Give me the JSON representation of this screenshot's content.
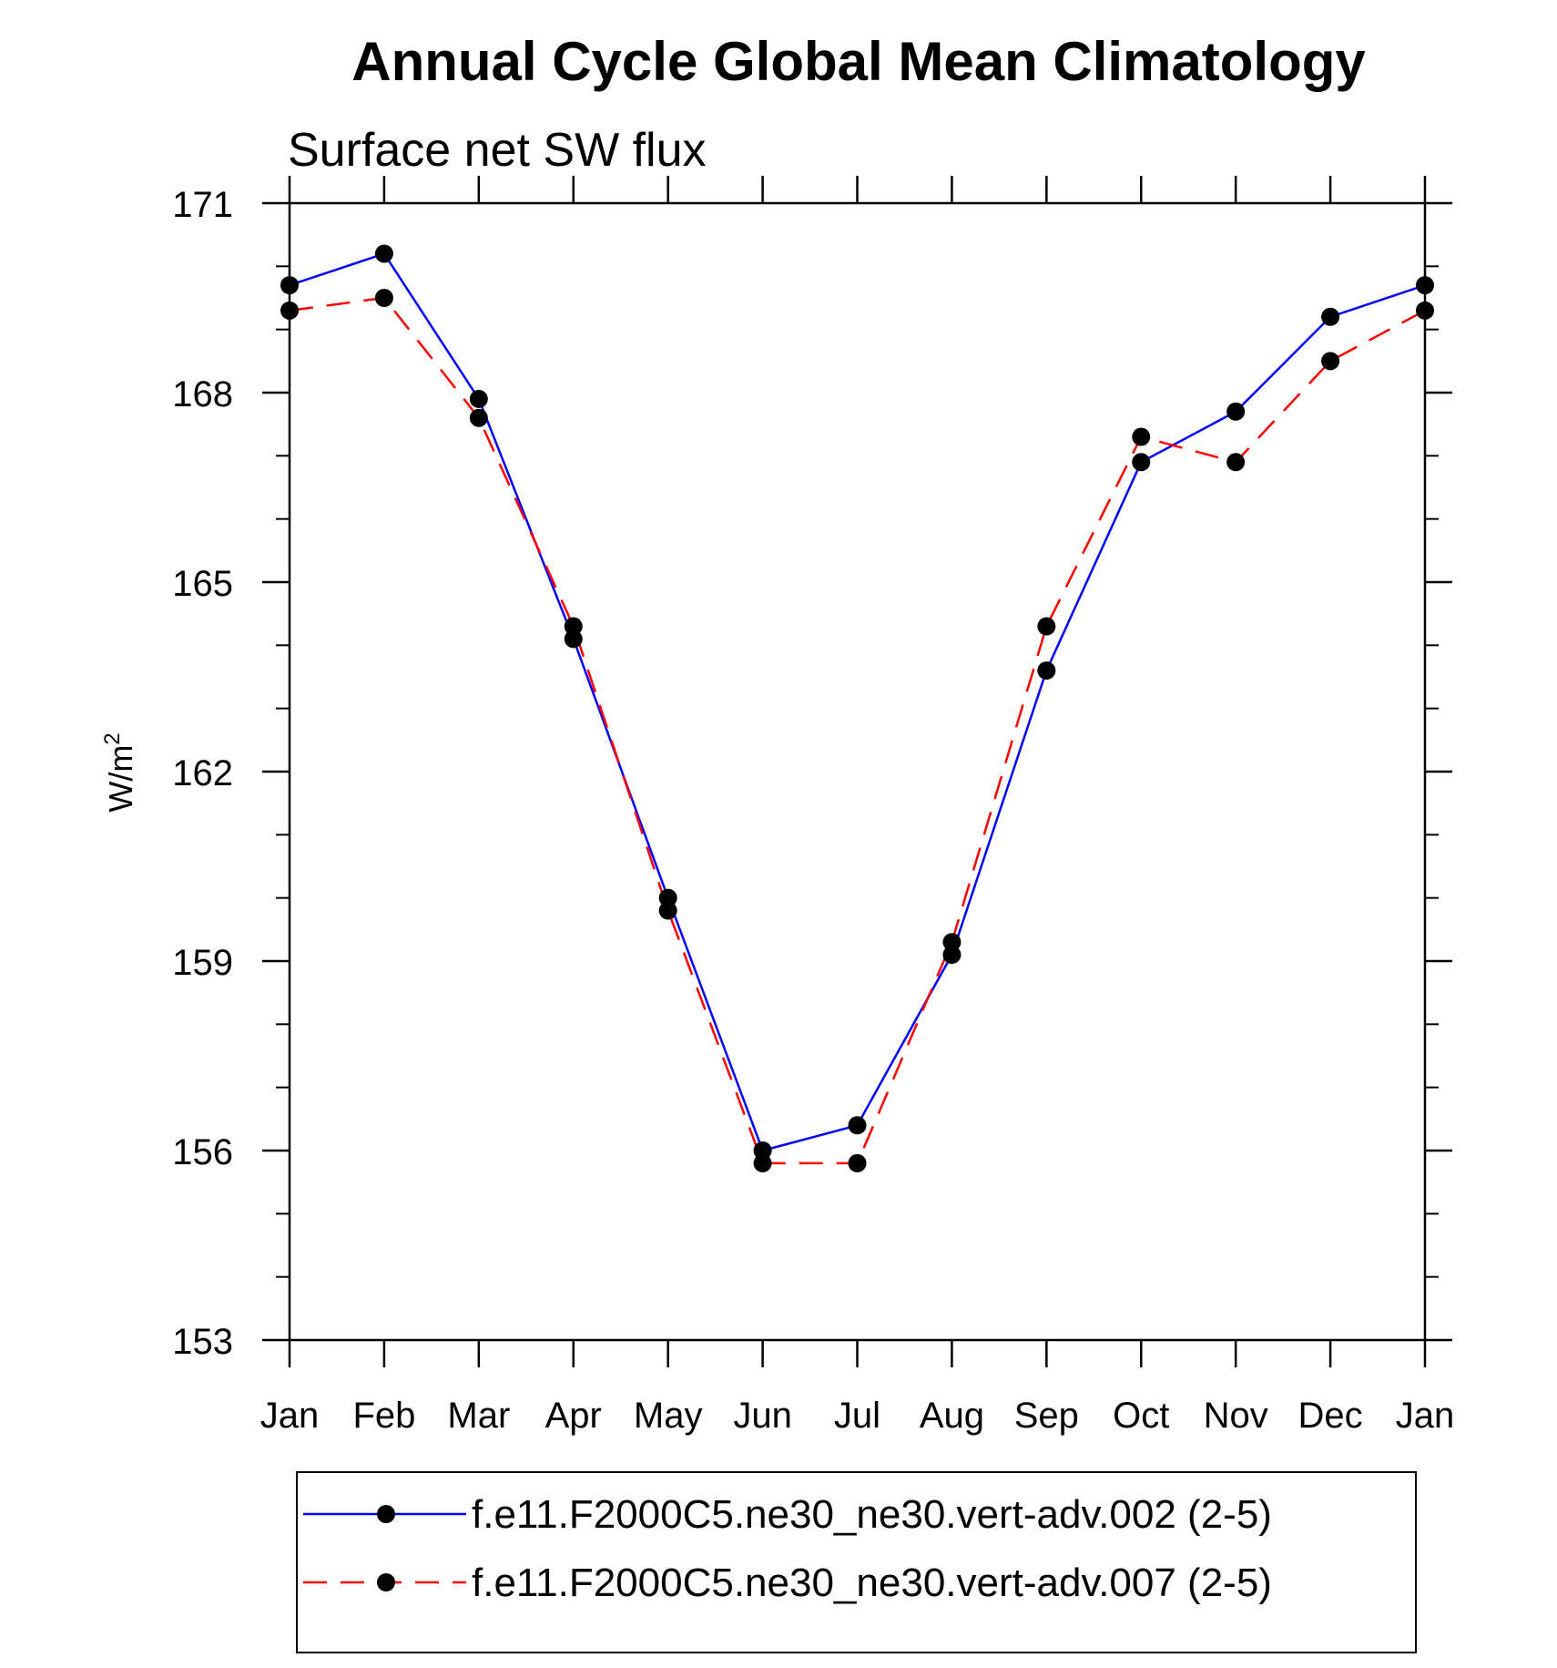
{
  "chart_data": {
    "type": "line",
    "title": "Annual Cycle Global Mean Climatology",
    "subtitle": "Surface net SW flux",
    "ylabel": "W/m",
    "ylabel_superscript": "2",
    "xlabel": "",
    "categories": [
      "Jan",
      "Feb",
      "Mar",
      "Apr",
      "May",
      "Jun",
      "Jul",
      "Aug",
      "Sep",
      "Oct",
      "Nov",
      "Dec",
      "Jan"
    ],
    "ylim": [
      153,
      171
    ],
    "yticks": [
      153,
      156,
      159,
      162,
      165,
      168,
      171
    ],
    "y_minor_step": 1,
    "grid": false,
    "legend_placement": "bottom",
    "series": [
      {
        "name": "f.e11.F2000C5.ne30_ne30.vert-adv.002 (2-5)",
        "color": "#0000ff",
        "dash": "solid",
        "marker": "filled-circle",
        "values": [
          169.7,
          170.2,
          167.9,
          164.1,
          160.0,
          156.0,
          156.4,
          159.1,
          163.6,
          166.9,
          167.7,
          169.2,
          169.7
        ]
      },
      {
        "name": "f.e11.F2000C5.ne30_ne30.vert-adv.007 (2-5)",
        "color": "#ff0000",
        "dash": "dashed",
        "marker": "filled-circle",
        "values": [
          169.3,
          169.5,
          167.6,
          164.3,
          159.8,
          155.8,
          155.8,
          159.3,
          164.3,
          167.3,
          166.9,
          168.5,
          169.3
        ]
      }
    ]
  }
}
